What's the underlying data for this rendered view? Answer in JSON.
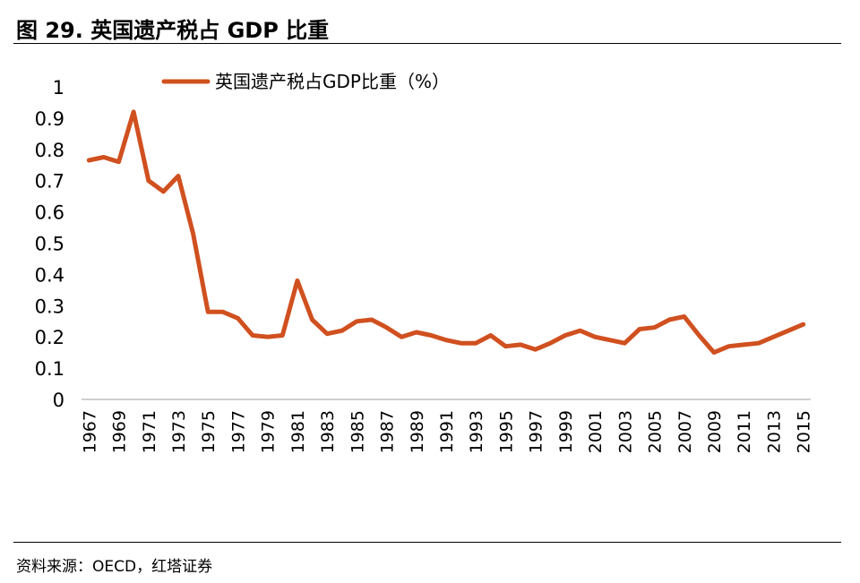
{
  "figure": {
    "title": "图 29. 英国遗产税占 GDP 比重",
    "source": "资料来源：OECD，红塔证券"
  },
  "colors": {
    "series": "#D0501F",
    "axis": "#BFBFBF"
  },
  "chart_data": {
    "type": "line",
    "x": [
      1967,
      1968,
      1969,
      1970,
      1971,
      1972,
      1973,
      1974,
      1975,
      1976,
      1977,
      1978,
      1979,
      1980,
      1981,
      1982,
      1983,
      1984,
      1985,
      1986,
      1987,
      1988,
      1989,
      1990,
      1991,
      1992,
      1993,
      1994,
      1995,
      1996,
      1997,
      1998,
      1999,
      2000,
      2001,
      2002,
      2003,
      2004,
      2005,
      2006,
      2007,
      2008,
      2009,
      2010,
      2011,
      2012,
      2013,
      2014,
      2015
    ],
    "x_tick_labels": [
      "1967",
      "1969",
      "1971",
      "1973",
      "1975",
      "1977",
      "1979",
      "1981",
      "1983",
      "1985",
      "1987",
      "1989",
      "1991",
      "1993",
      "1995",
      "1997",
      "1999",
      "2001",
      "2003",
      "2005",
      "2007",
      "2009",
      "2011",
      "2013",
      "2015"
    ],
    "series": [
      {
        "name": "英国遗产税占GDP比重（%）",
        "values": [
          0.765,
          0.775,
          0.76,
          0.92,
          0.7,
          0.665,
          0.715,
          0.53,
          0.28,
          0.28,
          0.26,
          0.205,
          0.2,
          0.205,
          0.38,
          0.255,
          0.21,
          0.22,
          0.25,
          0.255,
          0.23,
          0.2,
          0.215,
          0.205,
          0.19,
          0.18,
          0.18,
          0.205,
          0.17,
          0.175,
          0.16,
          0.18,
          0.205,
          0.22,
          0.2,
          0.19,
          0.18,
          0.225,
          0.23,
          0.255,
          0.265,
          0.205,
          0.15,
          0.17,
          0.175,
          0.18,
          0.2,
          0.22,
          0.24
        ]
      }
    ],
    "y_ticks": [
      "0",
      "0.1",
      "0.2",
      "0.3",
      "0.4",
      "0.5",
      "0.6",
      "0.7",
      "0.8",
      "0.9",
      "1"
    ],
    "ylim": [
      0,
      1
    ],
    "legend_position": "top",
    "grid": false
  }
}
